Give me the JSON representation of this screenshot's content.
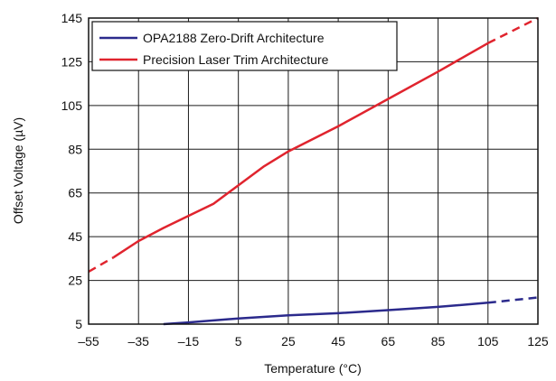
{
  "chart_data": {
    "type": "line",
    "xlabel": "Temperature (°C)",
    "ylabel": "Offset Voltage (µV)",
    "xlim": [
      -55,
      125
    ],
    "ylim": [
      5,
      145
    ],
    "x_ticks": [
      -55,
      -35,
      -15,
      5,
      25,
      45,
      65,
      85,
      105,
      125
    ],
    "y_ticks": [
      5,
      25,
      45,
      65,
      85,
      105,
      125,
      145
    ],
    "x_tick_labels": [
      "–55",
      "–35",
      "–15",
      "5",
      "25",
      "45",
      "65",
      "85",
      "105",
      "125"
    ],
    "y_tick_labels": [
      "5",
      "25",
      "45",
      "65",
      "85",
      "105",
      "125",
      "145"
    ],
    "grid": true,
    "legend_position": "top-left",
    "series": [
      {
        "name": "OPA2188 Zero-Drift Architecture",
        "color": "#2b2a8c",
        "solid": [
          [
            -25,
            5
          ],
          [
            -15,
            5.8
          ],
          [
            5,
            7.6
          ],
          [
            25,
            9.0
          ],
          [
            45,
            10.0
          ],
          [
            65,
            11.4
          ],
          [
            85,
            12.9
          ],
          [
            105,
            14.8
          ]
        ],
        "dashed": [
          [
            105,
            14.8
          ],
          [
            125,
            17.2
          ]
        ]
      },
      {
        "name": "Precision Laser Trim Architecture",
        "color": "#e0242e",
        "solid": [
          [
            -45,
            35.5
          ],
          [
            -35,
            43.0
          ],
          [
            -25,
            49.0
          ],
          [
            -15,
            54.5
          ],
          [
            -5,
            60.0
          ],
          [
            5,
            68.5
          ],
          [
            15,
            77.0
          ],
          [
            25,
            84.0
          ],
          [
            45,
            95.5
          ],
          [
            65,
            108.0
          ],
          [
            85,
            120.5
          ],
          [
            105,
            133.5
          ]
        ],
        "dashed": [
          [
            -55,
            29.0
          ],
          [
            -45,
            35.5
          ],
          [
            105,
            133.5
          ],
          [
            125,
            145.0
          ]
        ]
      }
    ]
  }
}
